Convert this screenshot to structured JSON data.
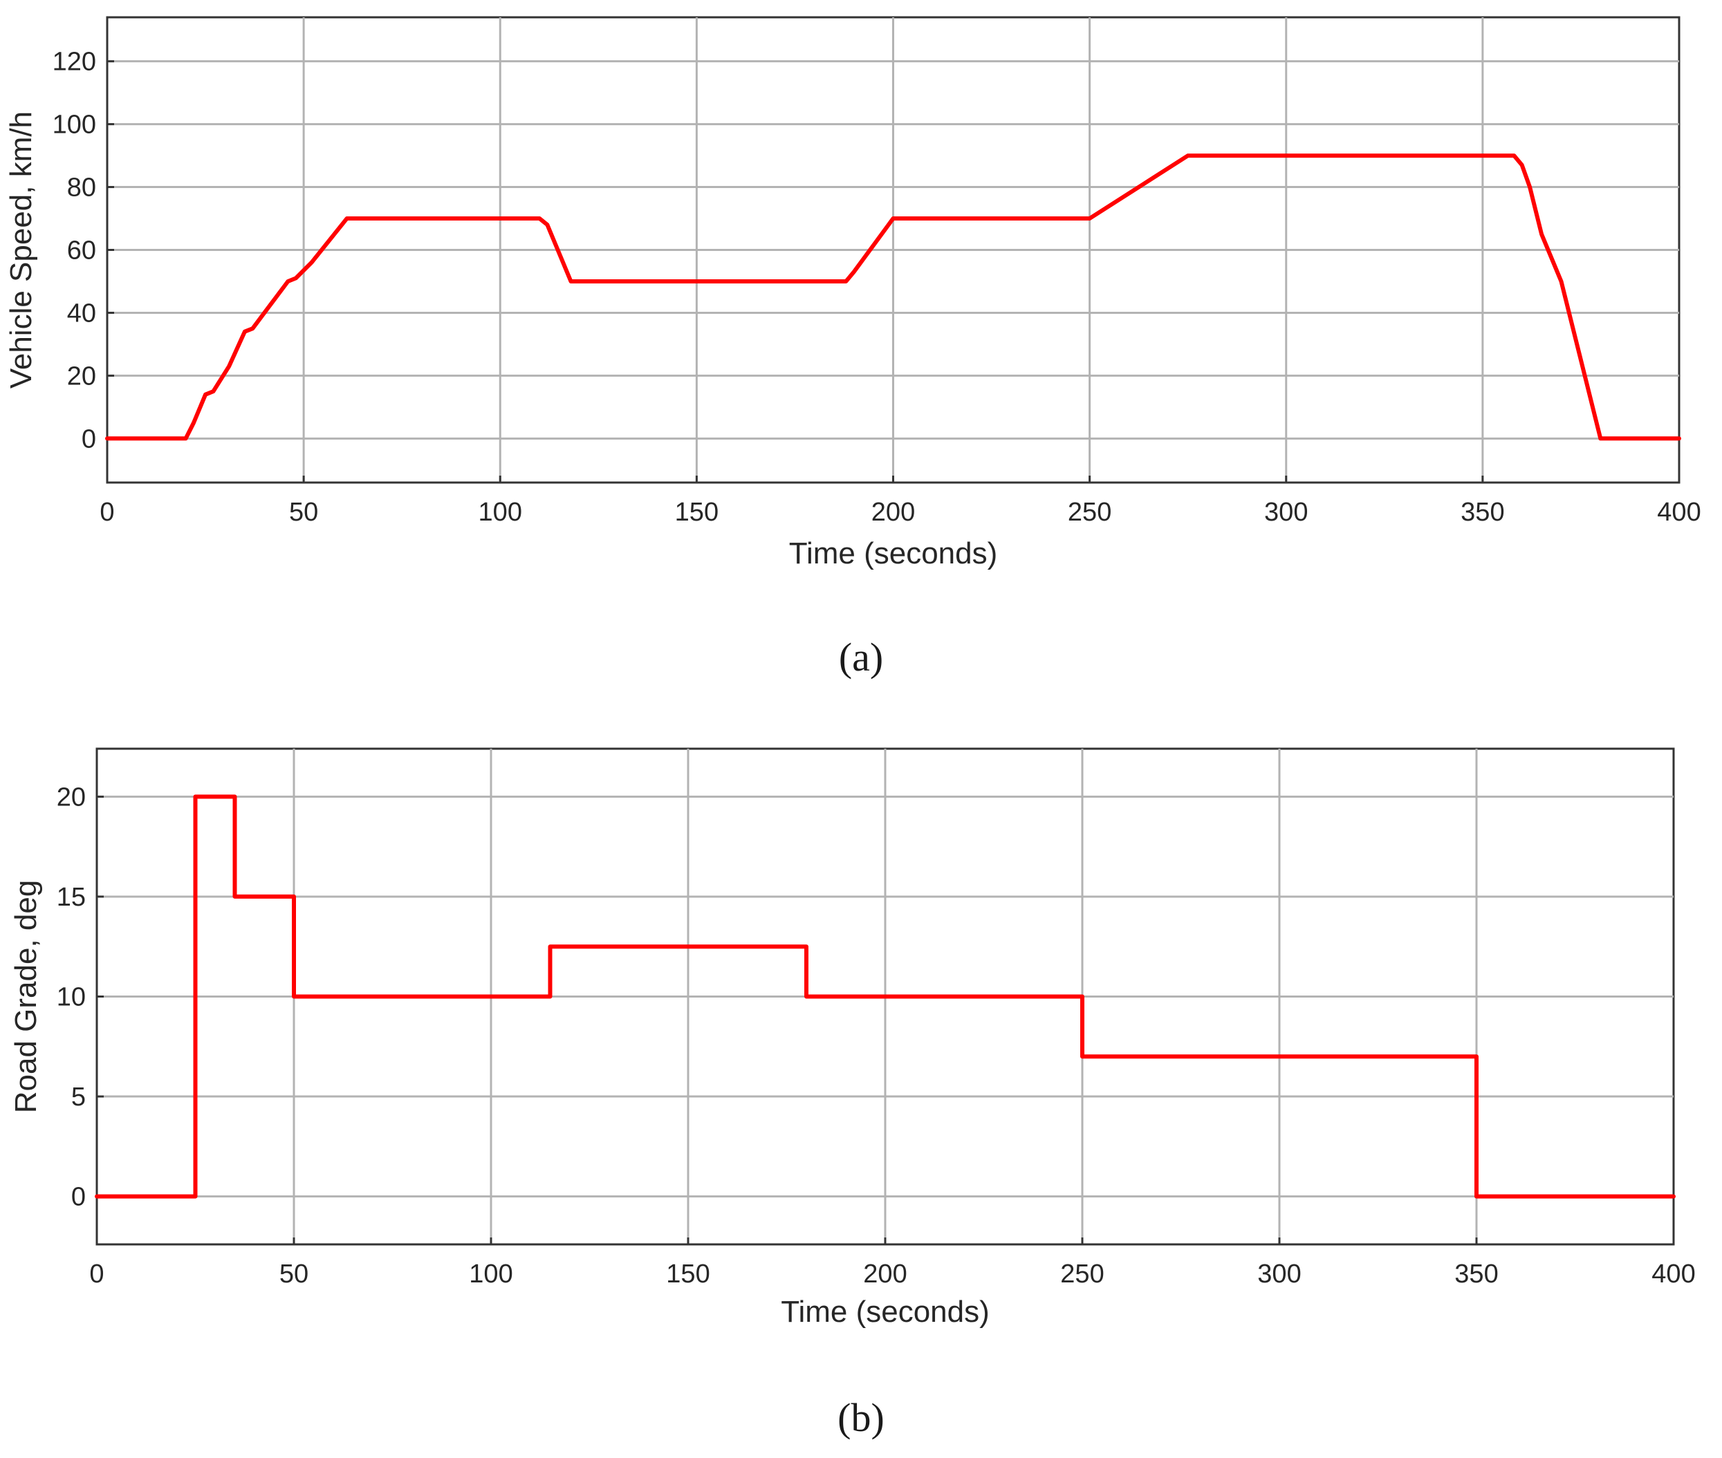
{
  "chart_data": [
    {
      "type": "line",
      "panel_label": "(a)",
      "title": "",
      "xlabel": "Time (seconds)",
      "ylabel": "Vehicle Speed, km/h",
      "xlim": [
        0,
        400
      ],
      "ylim": [
        -14,
        134
      ],
      "xticks": [
        0,
        50,
        100,
        150,
        200,
        250,
        300,
        350,
        400
      ],
      "xtick_labels": [
        "0",
        "50",
        "100",
        "150",
        "200",
        "250",
        "300",
        "350",
        "400"
      ],
      "yticks": [
        0,
        20,
        40,
        60,
        80,
        100,
        120
      ],
      "ytick_labels": [
        "0",
        "20",
        "40",
        "60",
        "80",
        "100",
        "120"
      ],
      "grid": true,
      "legend": "none",
      "series": [
        {
          "color": "#ff0000",
          "x": [
            0,
            20,
            22,
            25,
            27,
            31,
            35,
            37,
            40,
            46,
            48,
            52,
            61,
            110,
            112,
            118,
            188,
            190,
            200,
            250,
            275,
            358,
            360,
            362,
            365,
            370,
            380,
            400
          ],
          "y": [
            0,
            0,
            5,
            14,
            15,
            23,
            34,
            35,
            40,
            50,
            51,
            56,
            70,
            70,
            68,
            50,
            50,
            53,
            70,
            70,
            90,
            90,
            87,
            80,
            65,
            50,
            0,
            0
          ]
        }
      ]
    },
    {
      "type": "line",
      "panel_label": "(b)",
      "title": "",
      "xlabel": "Time (seconds)",
      "ylabel": "Road Grade, deg",
      "xlim": [
        0,
        400
      ],
      "ylim": [
        -2.4,
        22.4
      ],
      "xticks": [
        0,
        50,
        100,
        150,
        200,
        250,
        300,
        350,
        400
      ],
      "xtick_labels": [
        "0",
        "50",
        "100",
        "150",
        "200",
        "250",
        "300",
        "350",
        "400"
      ],
      "yticks": [
        0,
        5,
        10,
        15,
        20
      ],
      "ytick_labels": [
        "0",
        "5",
        "10",
        "15",
        "20"
      ],
      "grid": true,
      "legend": "none",
      "series": [
        {
          "color": "#ff0000",
          "x": [
            0,
            25,
            25,
            35,
            35,
            50,
            50,
            115,
            115,
            180,
            180,
            250,
            250,
            350,
            350,
            400
          ],
          "y": [
            0,
            0,
            20,
            20,
            15,
            15,
            10,
            10,
            12.5,
            12.5,
            10,
            10,
            7,
            7,
            0,
            0
          ]
        }
      ]
    }
  ]
}
